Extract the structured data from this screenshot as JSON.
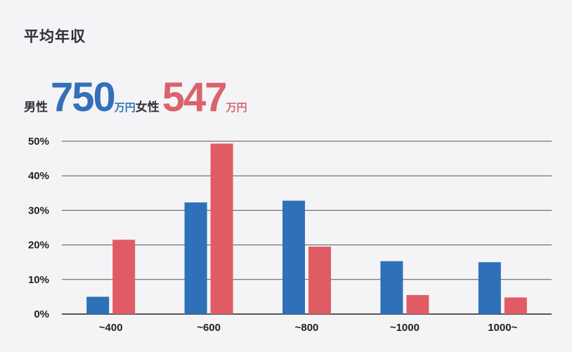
{
  "header": {
    "title": "平均年収"
  },
  "averages": {
    "male_label": "男性",
    "male_value": "750",
    "male_unit": "万円",
    "female_label": "女性",
    "female_value": "547",
    "female_unit": "万円"
  },
  "colors": {
    "male": "#2e71b8",
    "female": "#e05c65",
    "grid": "#555555",
    "axis": "#222222"
  },
  "chart_data": {
    "type": "bar",
    "categories": [
      "~400",
      "~600",
      "~800",
      "~1000",
      "1000~"
    ],
    "series": [
      {
        "values": [
          5,
          32.3,
          32.8,
          15.3,
          15
        ]
      },
      {
        "values": [
          21.5,
          49.3,
          19.5,
          5.5,
          4.8
        ]
      }
    ],
    "ylim": [
      0,
      50
    ],
    "yticks": [
      0,
      10,
      20,
      30,
      40,
      50
    ],
    "ytick_labels": [
      "0%",
      "10%",
      "20%",
      "30%",
      "40%",
      "50%"
    ],
    "grid": true,
    "xlabel": "",
    "ylabel": ""
  }
}
